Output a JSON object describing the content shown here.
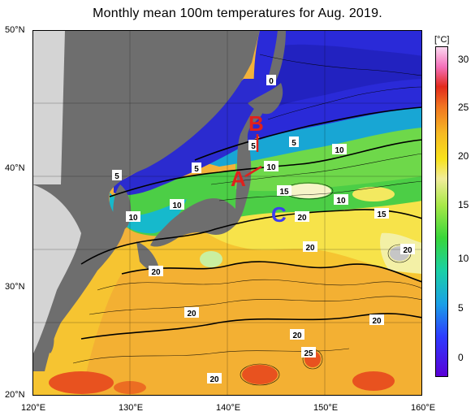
{
  "title": "Monthly mean 100m temperatures for Aug. 2019.",
  "lat_labels": [
    "50°N",
    "40°N",
    "30°N",
    "20°N"
  ],
  "lon_labels": [
    "120°E",
    "130°E",
    "140°E",
    "150°E",
    "160°E"
  ],
  "colorbar": {
    "unit": "[°C]",
    "ticks": [
      "30",
      "25",
      "20",
      "15",
      "10",
      "5",
      "0"
    ]
  },
  "markers": {
    "a": "A",
    "b": "B",
    "c": "C"
  },
  "contour_labels": [
    "0",
    "5",
    "5",
    "5",
    "5",
    "10",
    "10",
    "10",
    "10",
    "10",
    "15",
    "15",
    "20",
    "20",
    "20",
    "20",
    "20",
    "20",
    "20",
    "20",
    "25"
  ],
  "colors": {
    "land": "#6e6e6e",
    "nodata": "#d4d4d4",
    "cold": "#2a2ad8",
    "warm": "#f3b23a",
    "marker_red": "#e0201c",
    "marker_blue": "#3d3df0"
  }
}
